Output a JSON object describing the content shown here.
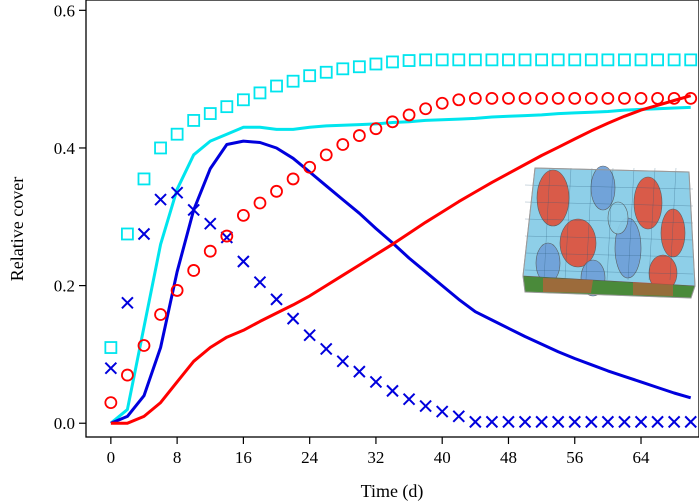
{
  "chart_data": {
    "type": "line",
    "xlabel": "Time (d)",
    "ylabel": "Relative cover",
    "xlim": [
      -3,
      71
    ],
    "ylim": [
      -0.02,
      0.615
    ],
    "x_ticks": [
      "0",
      "8",
      "16",
      "24",
      "32",
      "40",
      "48",
      "56",
      "64"
    ],
    "y_ticks": [
      "0.0",
      "0.2",
      "0.4",
      "0.6"
    ],
    "x_tick_values": [
      0,
      8,
      16,
      24,
      32,
      40,
      48,
      56,
      64
    ],
    "y_tick_values": [
      0,
      0.2,
      0.4,
      0.6
    ],
    "grid": false,
    "legend": "none",
    "series": [
      {
        "style": "line",
        "color": "#00e5ee",
        "marker": "none",
        "x": [
          0,
          2,
          4,
          6,
          8,
          10,
          12,
          14,
          16,
          18,
          20,
          22,
          24,
          26,
          28,
          30,
          32,
          34,
          36,
          38,
          40,
          42,
          44,
          46,
          48,
          50,
          52,
          54,
          56,
          58,
          60,
          62,
          64,
          66,
          68,
          70
        ],
        "y": [
          0,
          0.02,
          0.14,
          0.26,
          0.34,
          0.39,
          0.41,
          0.42,
          0.43,
          0.43,
          0.427,
          0.427,
          0.43,
          0.432,
          0.433,
          0.434,
          0.435,
          0.437,
          0.438,
          0.44,
          0.441,
          0.442,
          0.443,
          0.445,
          0.446,
          0.447,
          0.448,
          0.45,
          0.451,
          0.452,
          0.453,
          0.455,
          0.456,
          0.457,
          0.458,
          0.459
        ]
      },
      {
        "style": "line",
        "color": "#0000dd",
        "marker": "none",
        "x": [
          0,
          2,
          4,
          6,
          8,
          10,
          12,
          14,
          16,
          18,
          20,
          22,
          24,
          26,
          28,
          30,
          32,
          34,
          36,
          38,
          40,
          42,
          44,
          46,
          48,
          50,
          52,
          54,
          56,
          58,
          60,
          62,
          64,
          66,
          68,
          70
        ],
        "y": [
          0,
          0.01,
          0.04,
          0.11,
          0.22,
          0.31,
          0.37,
          0.405,
          0.41,
          0.408,
          0.4,
          0.385,
          0.365,
          0.345,
          0.325,
          0.305,
          0.283,
          0.262,
          0.24,
          0.22,
          0.2,
          0.18,
          0.162,
          0.15,
          0.138,
          0.126,
          0.115,
          0.104,
          0.094,
          0.085,
          0.076,
          0.068,
          0.06,
          0.052,
          0.044,
          0.037
        ]
      },
      {
        "style": "line",
        "color": "#ff0000",
        "marker": "none",
        "x": [
          0,
          2,
          4,
          6,
          8,
          10,
          12,
          14,
          16,
          18,
          20,
          22,
          24,
          26,
          28,
          30,
          32,
          34,
          36,
          38,
          40,
          42,
          44,
          46,
          48,
          50,
          52,
          54,
          56,
          58,
          60,
          62,
          64,
          66,
          68,
          70
        ],
        "y": [
          0,
          0,
          0.01,
          0.03,
          0.06,
          0.09,
          0.11,
          0.125,
          0.135,
          0.148,
          0.16,
          0.172,
          0.185,
          0.2,
          0.215,
          0.23,
          0.245,
          0.26,
          0.276,
          0.292,
          0.307,
          0.322,
          0.336,
          0.35,
          0.363,
          0.376,
          0.389,
          0.401,
          0.413,
          0.425,
          0.436,
          0.446,
          0.455,
          0.462,
          0.469,
          0.476
        ]
      },
      {
        "style": "markers",
        "color": "#00e5ee",
        "marker": "square",
        "x": [
          0,
          2,
          4,
          6,
          8,
          10,
          12,
          14,
          16,
          18,
          20,
          22,
          24,
          26,
          28,
          30,
          32,
          34,
          36,
          38,
          40,
          42,
          44,
          46,
          48,
          50,
          52,
          54,
          56,
          58,
          60,
          62,
          64,
          66,
          68,
          70
        ],
        "y": [
          0.11,
          0.275,
          0.355,
          0.4,
          0.42,
          0.44,
          0.45,
          0.46,
          0.47,
          0.48,
          0.49,
          0.497,
          0.505,
          0.51,
          0.515,
          0.518,
          0.522,
          0.525,
          0.527,
          0.528,
          0.528,
          0.528,
          0.528,
          0.528,
          0.528,
          0.528,
          0.528,
          0.528,
          0.528,
          0.528,
          0.528,
          0.528,
          0.528,
          0.528,
          0.528,
          0.528
        ]
      },
      {
        "style": "markers",
        "color": "#0000dd",
        "marker": "x",
        "x": [
          0,
          2,
          4,
          6,
          8,
          10,
          12,
          14,
          16,
          18,
          20,
          22,
          24,
          26,
          28,
          30,
          32,
          34,
          36,
          38,
          40,
          42,
          44,
          46,
          48,
          50,
          52,
          54,
          56,
          58,
          60,
          62,
          64,
          66,
          68,
          70
        ],
        "y": [
          0.08,
          0.175,
          0.275,
          0.325,
          0.335,
          0.31,
          0.29,
          0.27,
          0.235,
          0.205,
          0.18,
          0.152,
          0.128,
          0.108,
          0.09,
          0.075,
          0.06,
          0.047,
          0.035,
          0.025,
          0.017,
          0.01,
          0.002,
          0.002,
          0.002,
          0.002,
          0.002,
          0.002,
          0.002,
          0.002,
          0.002,
          0.002,
          0.002,
          0.002,
          0.002,
          0.002
        ]
      },
      {
        "style": "markers",
        "color": "#ff0000",
        "marker": "circle",
        "x": [
          0,
          2,
          4,
          6,
          8,
          10,
          12,
          14,
          16,
          18,
          20,
          22,
          24,
          26,
          28,
          30,
          32,
          34,
          36,
          38,
          40,
          42,
          44,
          46,
          48,
          50,
          52,
          54,
          56,
          58,
          60,
          62,
          64,
          66,
          68,
          70
        ],
        "y": [
          0.03,
          0.07,
          0.113,
          0.158,
          0.193,
          0.222,
          0.25,
          0.272,
          0.302,
          0.32,
          0.337,
          0.355,
          0.372,
          0.39,
          0.405,
          0.418,
          0.428,
          0.438,
          0.448,
          0.457,
          0.465,
          0.47,
          0.472,
          0.472,
          0.472,
          0.472,
          0.472,
          0.472,
          0.472,
          0.472,
          0.472,
          0.472,
          0.472,
          0.472,
          0.472,
          0.472
        ]
      }
    ],
    "inset": {
      "type": "surface-3d",
      "colors": [
        "#8ecfe8",
        "#e0523c",
        "#6fa0d8",
        "#4a8a3a"
      ]
    }
  }
}
